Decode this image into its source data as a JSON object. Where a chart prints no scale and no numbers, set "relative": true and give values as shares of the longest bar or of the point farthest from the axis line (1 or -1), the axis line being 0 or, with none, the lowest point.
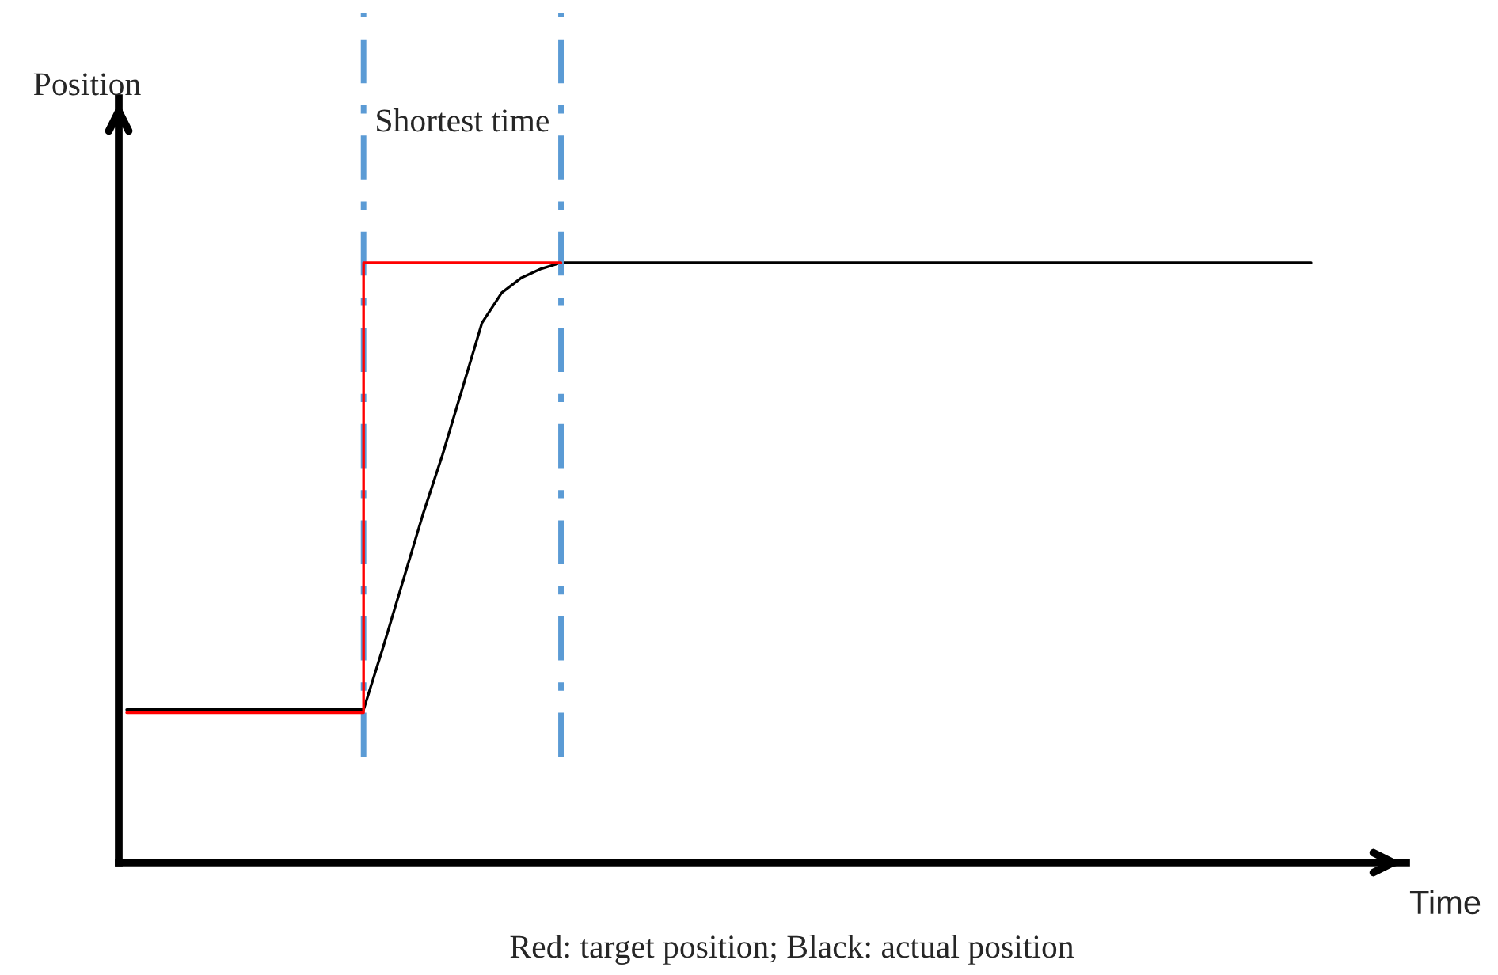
{
  "chart_data": {
    "type": "line",
    "relative": true,
    "xlabel": "Time",
    "categories": [
      null,
      null,
      null,
      null,
      null,
      null,
      null,
      null,
      null,
      null,
      null,
      null,
      null,
      null,
      null,
      null,
      null,
      null,
      null,
      null,
      null,
      null,
      null,
      null,
      null,
      null,
      null,
      null,
      null,
      null,
      null,
      null,
      null,
      null,
      null,
      null,
      null,
      null,
      null,
      null,
      null,
      null,
      null,
      null,
      null,
      null,
      null,
      null,
      null,
      null,
      null,
      null,
      null,
      null,
      null,
      null,
      null,
      null,
      null,
      null,
      null
    ],
    "series": [
      {
        "type": "step",
        "color": "#ff0000",
        "values": [
          0.25,
          0.25,
          0.25,
          0.25,
          0.25,
          0.25,
          0.25,
          0.25,
          0.25,
          0.25,
          0.25,
          0.25,
          1,
          1,
          1,
          1,
          1,
          1,
          1,
          1,
          1,
          1,
          1,
          null,
          null,
          null,
          null,
          null,
          null,
          null,
          null,
          null,
          null,
          null,
          null,
          null,
          null,
          null,
          null,
          null,
          null,
          null,
          null,
          null,
          null,
          null,
          null,
          null,
          null,
          null,
          null,
          null,
          null,
          null,
          null,
          null,
          null,
          null,
          null,
          null,
          null
        ]
      },
      {
        "color": "#000000",
        "values": [
          0.255,
          0.255,
          0.255,
          0.255,
          0.255,
          0.255,
          0.255,
          0.255,
          0.255,
          0.255,
          0.255,
          0.255,
          0.255,
          0.36,
          0.47,
          0.58,
          0.68,
          0.79,
          0.9,
          0.95,
          0.975,
          0.99,
          1,
          1,
          1,
          1,
          1,
          1,
          1,
          1,
          1,
          1,
          1,
          1,
          1,
          1,
          1,
          1,
          1,
          1,
          1,
          1,
          1,
          1,
          1,
          1,
          1,
          1,
          1,
          1,
          1,
          1,
          1,
          1,
          1,
          1,
          1,
          1,
          1,
          1,
          1
        ]
      }
    ],
    "annotations": [
      "Position",
      "Shortest time",
      "Red: target position; Black: actual position"
    ],
    "line_style": "solid",
    "marker": "none",
    "legend": false
  }
}
